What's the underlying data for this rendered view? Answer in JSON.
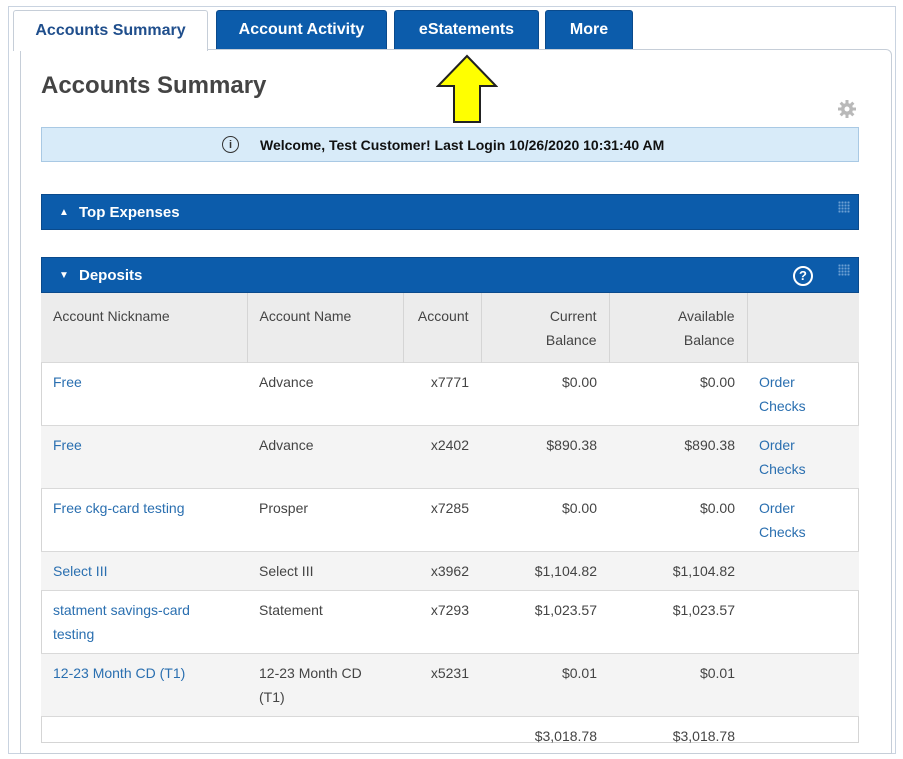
{
  "tabs": [
    {
      "label": "Accounts Summary",
      "active": true
    },
    {
      "label": "Account Activity",
      "active": false
    },
    {
      "label": "eStatements",
      "active": false
    },
    {
      "label": "More",
      "active": false
    }
  ],
  "page_title": "Accounts Summary",
  "welcome": "Welcome, Test Customer! Last Login 10/26/2020 10:31:40 AM",
  "sections": {
    "top_expenses": "Top Expenses",
    "deposits": "Deposits"
  },
  "table": {
    "headers": [
      "Account Nickname",
      "Account Name",
      "Account",
      "Current Balance",
      "Available Balance",
      ""
    ],
    "header_lines": {
      "current": [
        "Current",
        "Balance"
      ],
      "available": [
        "Available",
        "Balance"
      ]
    },
    "rows": [
      {
        "nickname": "Free",
        "name": "Advance",
        "account": "x7771",
        "current": "$0.00",
        "available": "$0.00",
        "action": [
          "Order",
          "Checks"
        ]
      },
      {
        "nickname": "Free",
        "name": "Advance",
        "account": "x2402",
        "current": "$890.38",
        "available": "$890.38",
        "action": [
          "Order",
          "Checks"
        ]
      },
      {
        "nickname": "Free ckg-card testing",
        "name": "Prosper",
        "account": "x7285",
        "current": "$0.00",
        "available": "$0.00",
        "action": [
          "Order",
          "Checks"
        ]
      },
      {
        "nickname": "Select III",
        "name": "Select III",
        "account": "x3962",
        "current": "$1,104.82",
        "available": "$1,104.82",
        "action": [
          "",
          ""
        ]
      },
      {
        "nickname": "statment savings-card testing",
        "name": "Statement",
        "account": "x7293",
        "current": "$1,023.57",
        "available": "$1,023.57",
        "action": [
          "",
          ""
        ]
      },
      {
        "nickname": "12-23 Month CD (T1)",
        "name": "12-23 Month CD (T1)",
        "account": "x5231",
        "current": "$0.01",
        "available": "$0.01",
        "action": [
          "",
          ""
        ]
      }
    ],
    "totals": {
      "current": "$3,018.78",
      "available": "$3,018.78"
    }
  },
  "icons": {
    "info": "info-icon",
    "help": "help-icon",
    "gear": "gear-icon",
    "annotation_arrow": "arrow-up-icon"
  },
  "colors": {
    "tab_blue": "#0c5cab",
    "link_blue": "#2a6fb0",
    "welcome_bg": "#d8ebf9",
    "arrow_yellow": "#ffff00"
  }
}
